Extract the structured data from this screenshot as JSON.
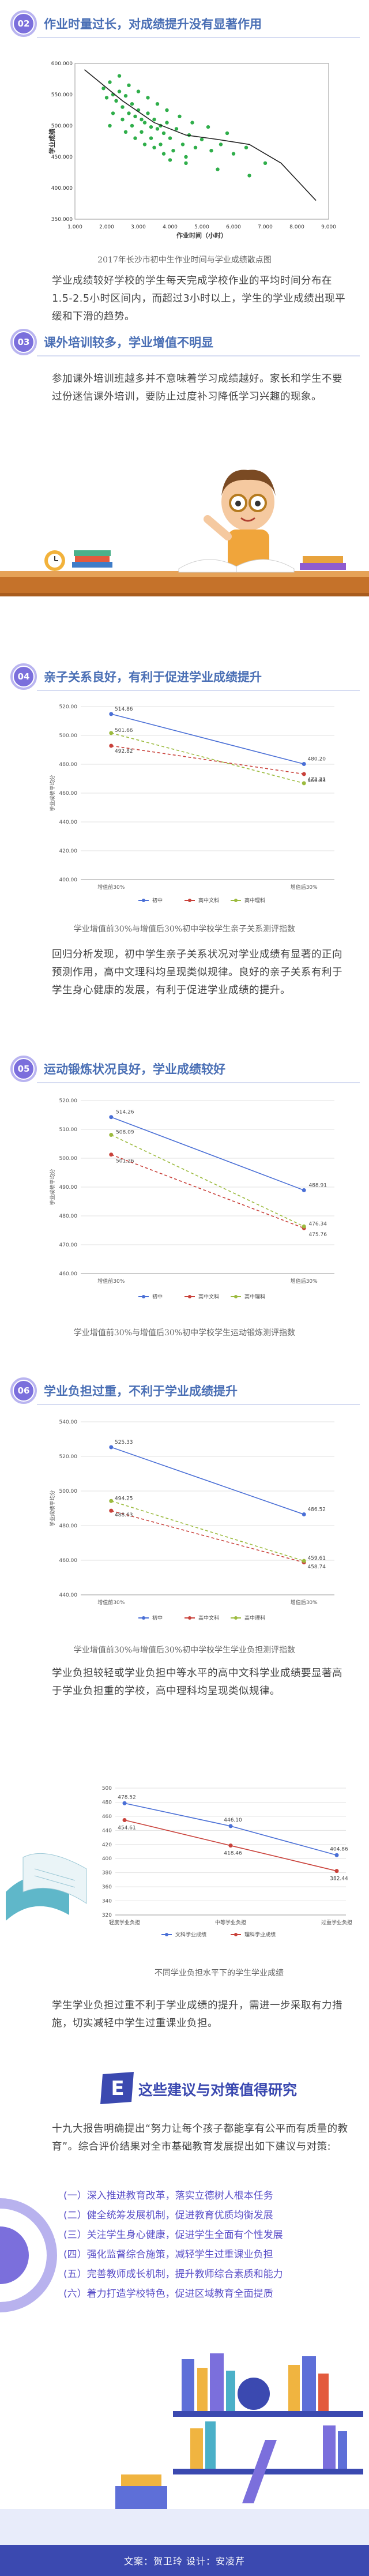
{
  "sections": {
    "s02": {
      "num": "02",
      "title": "作业时量过长，对成绩提升没有显著作用"
    },
    "s03": {
      "num": "03",
      "title": "课外培训较多，学业增值不明显"
    },
    "s04": {
      "num": "04",
      "title": "亲子关系良好，有利于促进学业成绩提升"
    },
    "s05": {
      "num": "05",
      "title": "运动锻炼状况良好，学业成绩较好"
    },
    "s06": {
      "num": "06",
      "title": "学业负担过重，不利于学业成绩提升"
    },
    "s07": {
      "letter": "E",
      "title": "这些建议与对策值得研究"
    }
  },
  "captions": {
    "c1": "2017年长沙市初中生作业时间与学业成绩散点图",
    "c2": "学业增值前30%与增值后30%初中学校学生亲子关系测评指数",
    "c3": "学业增值前30%与增值后30%初中学校学生运动锻炼测评指数",
    "c4": "学业增值前30%与增值后30%初中学校学生学业负担测评指数",
    "c5": "不同学业负担水平下的学生学业成绩"
  },
  "paragraphs": {
    "p1": "学业成绩较好学校的学生每天完成学校作业的平均时间分布在1.5-2.5小时区间内，而超过3小时以上，学生的学业成绩出现平缓和下滑的趋势。",
    "p2": "参加课外培训班越多并不意味着学习成绩越好。家长和学生不要过份迷信课外培训，要防止过度补习降低学习兴趣的现象。",
    "p3": "回归分析发现，初中学生亲子关系状况对学业成绩有显著的正向预测作用，高中文理科均呈现类似规律。良好的亲子关系有利于学生身心健康的发展，有利于促进学业成绩的提升。",
    "p4": "学业负担较轻或学业负担中等水平的高中文科学业成绩要显著高于学业负担重的学校，高中理科均呈现类似规律。",
    "p5": "学生学业负担过重不利于学业成绩的提升，需进一步采取有力措施，切实减轻中学生过重课业负担。",
    "p6": "十九大报告明确提出“努力让每个孩子都能享有公平而有质量的教育”。综合评价结果对全市基础教育发展提出如下建议与对策:"
  },
  "recommendations": [
    "(一）深入推进教育改革，落实立德树人根本任务",
    "(二）健全统筹发展机制，促进教育优质均衡发展",
    "(三）关注学生身心健康，促进学生全面有个性发展",
    "(四）强化监督综合施策，减轻学生过重课业负担",
    "(五）完善教师成长机制，提升教师综合素质和能力",
    "(六）着力打造学校特色，促进区域教育全面提质"
  ],
  "footer": "文案：贺卫玲  设计：安凌芹",
  "chart_data": [
    {
      "type": "scatter",
      "xlabel": "作业时间（小时）",
      "ylabel": "学业成绩",
      "xlim": [
        1.0,
        9.0
      ],
      "ylim": [
        350,
        600
      ],
      "xticks": [
        "1.000",
        "2.000",
        "3.000",
        "4.000",
        "5.000",
        "6.000",
        "7.000",
        "8.000",
        "9.000"
      ],
      "yticks": [
        "350.000",
        "400.000",
        "450.000",
        "500.000",
        "550.000",
        "600.000"
      ],
      "points": [
        [
          1.9,
          560
        ],
        [
          2.0,
          545
        ],
        [
          2.1,
          570
        ],
        [
          2.2,
          550
        ],
        [
          2.3,
          540
        ],
        [
          2.4,
          555
        ],
        [
          2.5,
          530
        ],
        [
          2.6,
          548
        ],
        [
          2.7,
          520
        ],
        [
          2.8,
          535
        ],
        [
          2.9,
          515
        ],
        [
          3.0,
          525
        ],
        [
          3.1,
          510
        ],
        [
          3.2,
          505
        ],
        [
          3.3,
          520
        ],
        [
          3.4,
          498
        ],
        [
          3.5,
          510
        ],
        [
          3.6,
          495
        ],
        [
          3.7,
          500
        ],
        [
          3.8,
          488
        ],
        [
          3.9,
          505
        ],
        [
          4.0,
          480
        ],
        [
          4.2,
          495
        ],
        [
          4.4,
          470
        ],
        [
          4.6,
          485
        ],
        [
          4.8,
          465
        ],
        [
          5.0,
          478
        ],
        [
          5.3,
          460
        ],
        [
          5.6,
          470
        ],
        [
          6.0,
          455
        ],
        [
          6.4,
          465
        ],
        [
          7.0,
          440
        ],
        [
          2.2,
          520
        ],
        [
          2.5,
          510
        ],
        [
          2.8,
          500
        ],
        [
          3.1,
          490
        ],
        [
          3.4,
          480
        ],
        [
          3.7,
          470
        ],
        [
          4.1,
          460
        ],
        [
          4.5,
          450
        ],
        [
          2.4,
          580
        ],
        [
          2.7,
          565
        ],
        [
          3.0,
          555
        ],
        [
          3.3,
          545
        ],
        [
          3.6,
          535
        ],
        [
          3.9,
          525
        ],
        [
          4.3,
          515
        ],
        [
          4.7,
          505
        ],
        [
          5.2,
          498
        ],
        [
          5.8,
          488
        ],
        [
          2.1,
          500
        ],
        [
          2.6,
          490
        ],
        [
          3.2,
          470
        ],
        [
          3.8,
          455
        ],
        [
          4.5,
          440
        ],
        [
          5.5,
          430
        ],
        [
          6.5,
          420
        ],
        [
          2.9,
          480
        ],
        [
          3.5,
          465
        ],
        [
          4.0,
          445
        ]
      ],
      "fit": [
        [
          1.3,
          590
        ],
        [
          2.5,
          540
        ],
        [
          3.5,
          505
        ],
        [
          4.5,
          485
        ],
        [
          5.5,
          478
        ],
        [
          6.5,
          470
        ],
        [
          7.5,
          440
        ],
        [
          8.6,
          380
        ]
      ]
    },
    {
      "type": "line",
      "title": "",
      "ylabel": "学业成绩平均分",
      "categories": [
        "增值前30%",
        "增值后30%"
      ],
      "ylim": [
        400,
        520
      ],
      "yticks": [
        "400.00",
        "420.00",
        "440.00",
        "460.00",
        "480.00",
        "500.00",
        "520.00"
      ],
      "series": [
        {
          "name": "初中",
          "values": [
            514.86,
            480.2
          ],
          "color": "#4a6fd6"
        },
        {
          "name": "高中文科",
          "values": [
            492.82,
            473.22
          ],
          "color": "#c9413a"
        },
        {
          "name": "高中理科",
          "values": [
            501.66,
            466.83
          ],
          "color": "#9cbb3f"
        }
      ]
    },
    {
      "type": "line",
      "ylabel": "学业成绩平均分",
      "categories": [
        "增值前30%",
        "增值后30%"
      ],
      "ylim": [
        460,
        520
      ],
      "yticks": [
        "460.00",
        "470.00",
        "480.00",
        "490.00",
        "500.00",
        "510.00",
        "520.00"
      ],
      "series": [
        {
          "name": "初中",
          "values": [
            514.26,
            488.91
          ],
          "color": "#4a6fd6"
        },
        {
          "name": "高中文科",
          "values": [
            501.26,
            475.76
          ],
          "color": "#c9413a"
        },
        {
          "name": "高中理科",
          "values": [
            508.09,
            476.34
          ],
          "color": "#9cbb3f"
        }
      ]
    },
    {
      "type": "line",
      "ylabel": "学业成绩平均分",
      "categories": [
        "增值前30%",
        "增值后30%"
      ],
      "ylim": [
        440,
        540
      ],
      "yticks": [
        "440.00",
        "460.00",
        "480.00",
        "500.00",
        "520.00",
        "540.00"
      ],
      "series": [
        {
          "name": "初中",
          "values": [
            525.33,
            486.52
          ],
          "color": "#4a6fd6"
        },
        {
          "name": "高中文科",
          "values": [
            488.63,
            458.74
          ],
          "color": "#c9413a"
        },
        {
          "name": "高中理科",
          "values": [
            494.25,
            459.61
          ],
          "color": "#9cbb3f"
        }
      ]
    },
    {
      "type": "line",
      "categories": [
        "轻度学业负担",
        "中等学业负担",
        "过重学业负担"
      ],
      "ylim": [
        320,
        500
      ],
      "yticks": [
        "320",
        "340",
        "360",
        "380",
        "400",
        "420",
        "440",
        "460",
        "480",
        "500"
      ],
      "series": [
        {
          "name": "文科学业成绩",
          "values": [
            478.52,
            446.1,
            404.86
          ],
          "color": "#4a6fd6"
        },
        {
          "name": "理科学业成绩",
          "values": [
            454.61,
            418.46,
            382.44
          ],
          "color": "#c9413a"
        }
      ]
    }
  ]
}
